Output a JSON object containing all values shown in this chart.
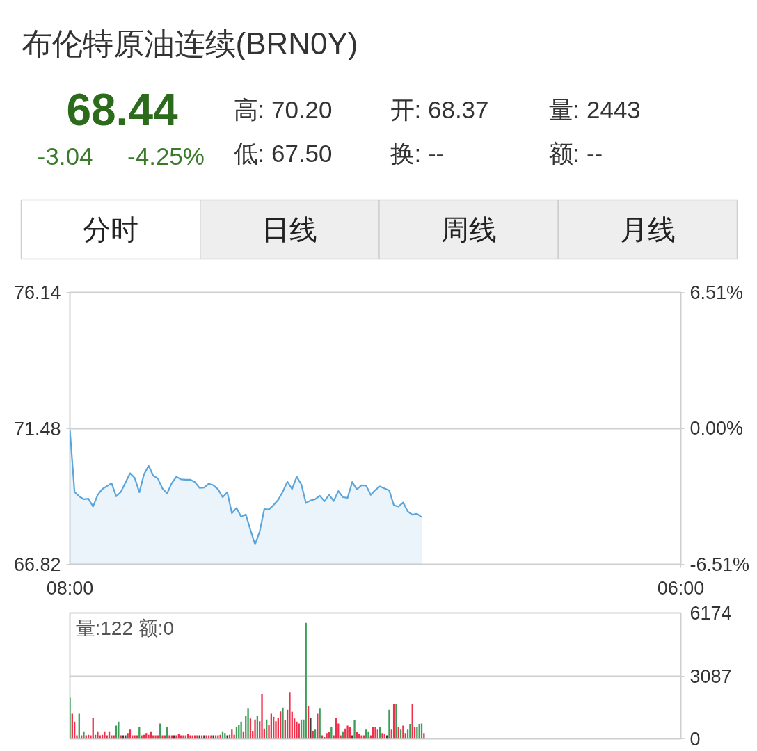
{
  "chart_data": [
    {
      "type": "other",
      "title": "布伦特原油连续(BRN0Y)",
      "annotations": [
        "68.44",
        "-3.04",
        "-4.25%",
        "高: 70.20",
        "开: 68.37",
        "量: 2443",
        "低: 67.50",
        "换: --",
        "额: --",
        "分时",
        "日线",
        "周线",
        "月线"
      ]
    },
    {
      "type": "area",
      "categories": [
        "08:00",
        null,
        null,
        null,
        null,
        null,
        null,
        null,
        null,
        null,
        null,
        null,
        null,
        null,
        null,
        null,
        null,
        null,
        null,
        null,
        null,
        null,
        null,
        null,
        null,
        null,
        null,
        null,
        null,
        null,
        null,
        null,
        null,
        null,
        null,
        null,
        null,
        null,
        null,
        null,
        null,
        null,
        null,
        null,
        null,
        null,
        null,
        null,
        null,
        null,
        null,
        null,
        null,
        null,
        null,
        null,
        null,
        null,
        null,
        null,
        null,
        null,
        null,
        null,
        null,
        null,
        null,
        null,
        null,
        null,
        null,
        null,
        null,
        null,
        null,
        null,
        null,
        null,
        null,
        null,
        null,
        null,
        null,
        null,
        null,
        null,
        null,
        null,
        null,
        null,
        null,
        null,
        null,
        null,
        null,
        null,
        null,
        null,
        null,
        null,
        null,
        null,
        null,
        null,
        null,
        null,
        null,
        null,
        null,
        null,
        null,
        null,
        null,
        null,
        null,
        null,
        null,
        null,
        null,
        null,
        null,
        null,
        null,
        null,
        null,
        null,
        null,
        null,
        null,
        null,
        null,
        null,
        "06:00"
      ],
      "series": [
        {
          "color": "#5aa5dc",
          "values": [
            71.41,
            69.3,
            69.15,
            69.05,
            69.07,
            68.8,
            69.2,
            69.4,
            69.5,
            69.6,
            69.15,
            69.3,
            69.62,
            69.94,
            69.78,
            69.29,
            69.9,
            70.2,
            69.86,
            69.76,
            69.42,
            69.25,
            69.6,
            69.82,
            69.73,
            69.72,
            69.72,
            69.64,
            69.44,
            69.45,
            69.58,
            69.53,
            69.39,
            69.12,
            69.29,
            68.57,
            68.75,
            68.45,
            68.53,
            68.0,
            67.5,
            67.94,
            68.71,
            68.7,
            68.85,
            69.03,
            69.31,
            69.65,
            69.4,
            69.82,
            69.56,
            68.92,
            69.01,
            69.05,
            69.17,
            68.98,
            69.2,
            68.99,
            69.33,
            69.12,
            69.1,
            69.64,
            69.39,
            69.53,
            69.52,
            69.2,
            69.37,
            69.49,
            69.42,
            69.35,
            68.84,
            68.8,
            68.94,
            68.63,
            68.52,
            68.55,
            68.44,
            null,
            null,
            null,
            null,
            null,
            null,
            null,
            null,
            null,
            null,
            null,
            null,
            null,
            null,
            null,
            null,
            null,
            null,
            null,
            null,
            null,
            null,
            null,
            null,
            null,
            null,
            null,
            null,
            null,
            null,
            null,
            null,
            null,
            null,
            null,
            null,
            null,
            null,
            null,
            null,
            null,
            null,
            null,
            null,
            null,
            null,
            null,
            null,
            null,
            null,
            null,
            null,
            null,
            null,
            null,
            null
          ]
        }
      ],
      "ylim": [
        66.82,
        76.14
      ],
      "yticks": [
        66.82,
        71.48,
        76.14
      ],
      "y2lim": [
        -6.51,
        6.51
      ],
      "y2ticks": [
        {
          "value": -6.51,
          "label": "-6.51%"
        },
        {
          "value": 0,
          "label": "0.00%"
        },
        {
          "value": 6.51,
          "label": "6.51%"
        }
      ],
      "grid": "y"
    },
    {
      "type": "bar",
      "categories": [
        null,
        null,
        null,
        null,
        null,
        null,
        null,
        null,
        null,
        null,
        null,
        null,
        null,
        null,
        null,
        null,
        null,
        null,
        null,
        null,
        null,
        null,
        null,
        null,
        null,
        null,
        null,
        null,
        null,
        null,
        null,
        null,
        null,
        null,
        null,
        null,
        null,
        null,
        null,
        null,
        null,
        null,
        null,
        null,
        null,
        null,
        null,
        null,
        null,
        null,
        null,
        null,
        null,
        null,
        null,
        null,
        null,
        null,
        null,
        null,
        null,
        null,
        null,
        null,
        null,
        null,
        null,
        null,
        null,
        null,
        null,
        null,
        null,
        null,
        null,
        null,
        null,
        null,
        null,
        null,
        null,
        null,
        null,
        null,
        null,
        null,
        null,
        null,
        null,
        null,
        null,
        null,
        null,
        null,
        null,
        null,
        null,
        null,
        null,
        null,
        null,
        null,
        null,
        null,
        null,
        null,
        null,
        null,
        null,
        null,
        null,
        null,
        null,
        null,
        null,
        null,
        null,
        null,
        null,
        null,
        null,
        null,
        null,
        null,
        null,
        null,
        null,
        null,
        null,
        null,
        null,
        null,
        null,
        null,
        null,
        null,
        null,
        null,
        null,
        null,
        null,
        null,
        null,
        null,
        null,
        null,
        null,
        null,
        null,
        null,
        null,
        null,
        null,
        null,
        null,
        null,
        null,
        null,
        null,
        null,
        null,
        null,
        null,
        null,
        null,
        null,
        null,
        null,
        null,
        null,
        null,
        null,
        null,
        null,
        null,
        null,
        null,
        null,
        null,
        null,
        null,
        null,
        null,
        null,
        null,
        null,
        null,
        null,
        null,
        null,
        null,
        null,
        null,
        null,
        null,
        null,
        null,
        null,
        null,
        null,
        null,
        null,
        null,
        null,
        null,
        null,
        null,
        null,
        null,
        null,
        null,
        null,
        null,
        null,
        null,
        null,
        null,
        null,
        null,
        null,
        null,
        null,
        null,
        null,
        null,
        null,
        null,
        null,
        null,
        null,
        null,
        null,
        null,
        null,
        null,
        null,
        null,
        null,
        null,
        null,
        null,
        null,
        null,
        null,
        null,
        null,
        null,
        null,
        null,
        null,
        null,
        null,
        null,
        null,
        null,
        null,
        null,
        null,
        null,
        null,
        null,
        null,
        null,
        null,
        null
      ],
      "values": [
        2010,
        1230,
        840,
        170,
        1230,
        170,
        370,
        170,
        200,
        170,
        1040,
        200,
        370,
        170,
        200,
        370,
        170,
        370,
        170,
        170,
        650,
        840,
        170,
        170,
        170,
        280,
        450,
        170,
        170,
        170,
        560,
        170,
        200,
        280,
        200,
        370,
        170,
        170,
        170,
        750,
        170,
        170,
        560,
        170,
        170,
        170,
        170,
        260,
        170,
        170,
        170,
        260,
        170,
        170,
        170,
        170,
        170,
        170,
        170,
        170,
        170,
        170,
        170,
        170,
        170,
        200,
        370,
        280,
        170,
        200,
        450,
        200,
        560,
        670,
        840,
        370,
        1120,
        1510,
        1000,
        390,
        950,
        1120,
        860,
        2200,
        500,
        950,
        670,
        1230,
        1080,
        860,
        1040,
        1340,
        1530,
        930,
        1420,
        2290,
        1320,
        1000,
        840,
        750,
        950,
        950,
        5690,
        1620,
        1040,
        390,
        450,
        1230,
        1510,
        170,
        80,
        280,
        330,
        560,
        170,
        1040,
        750,
        170,
        370,
        500,
        650,
        560,
        170,
        930,
        330,
        220,
        170,
        170,
        450,
        370,
        170,
        560,
        560,
        450,
        560,
        280,
        220,
        170,
        1420,
        450,
        1700,
        1700,
        560,
        450,
        650,
        280,
        450,
        730,
        1700,
        560,
        560,
        730,
        750,
        280,
        null,
        null,
        null,
        null,
        null,
        null,
        null,
        null,
        null,
        null,
        null,
        null,
        null,
        null,
        null,
        null,
        null,
        null,
        null,
        null,
        null,
        null,
        null,
        null,
        null,
        null,
        null,
        null,
        null,
        null,
        null,
        null,
        null,
        null,
        null,
        null,
        null,
        null,
        null,
        null,
        null,
        null,
        null,
        null,
        null,
        null,
        null,
        null,
        null,
        null,
        null,
        null,
        null,
        null,
        null,
        null,
        null,
        null,
        null,
        null,
        null,
        null,
        null,
        null,
        null,
        null,
        null,
        null,
        null,
        null,
        null,
        null,
        null,
        null,
        null,
        null,
        null,
        null,
        null,
        null,
        null,
        null,
        null,
        null,
        null,
        null,
        null,
        null,
        null,
        null,
        null,
        null,
        null,
        null,
        null,
        null,
        null,
        null,
        null,
        null,
        null,
        null,
        null,
        null,
        null,
        null,
        null,
        null,
        null,
        null,
        null
      ],
      "colors": [
        "#3c9e5a",
        "#f0304a",
        "#f0304a",
        "#f0304a",
        "#3c9e5a",
        "#f0304a",
        "#3c9e5a",
        "#f0304a",
        "#f0304a",
        "#f0304a",
        "#f0304a",
        "#f0304a",
        "#f0304a",
        "#f0304a",
        "#f0304a",
        "#f0304a",
        "#f0304a",
        "#f0304a",
        "#f0304a",
        "#f0304a",
        "#3c9e5a",
        "#3c9e5a",
        "#f0304a",
        "#3a3a3a",
        "#3a3a3a",
        "#f0304a",
        "#f0304a",
        "#f0304a",
        "#f0304a",
        "#f0304a",
        "#3c9e5a",
        "#f0304a",
        "#f0304a",
        "#f0304a",
        "#f0304a",
        "#f0304a",
        "#f0304a",
        "#f0304a",
        "#f0304a",
        "#3c9e5a",
        "#f0304a",
        "#f0304a",
        "#3c9e5a",
        "#f0304a",
        "#f0304a",
        "#3a3a3a",
        "#f0304a",
        "#f0304a",
        "#f0304a",
        "#f0304a",
        "#f0304a",
        "#f0304a",
        "#f0304a",
        "#f0304a",
        "#f0304a",
        "#f0304a",
        "#3a3a3a",
        "#f0304a",
        "#3a3a3a",
        "#f0304a",
        "#f0304a",
        "#f0304a",
        "#3a3a3a",
        "#f0304a",
        "#f0304a",
        "#f0304a",
        "#3c9e5a",
        "#3c9e5a",
        "#3a3a3a",
        "#f0304a",
        "#f0304a",
        "#f0304a",
        "#3c9e5a",
        "#3c9e5a",
        "#3c9e5a",
        "#f0304a",
        "#3c9e5a",
        "#3c9e5a",
        "#f0304a",
        "#f0304a",
        "#f0304a",
        "#3c9e5a",
        "#f0304a",
        "#f0304a",
        "#f0304a",
        "#3c9e5a",
        "#f0304a",
        "#f0304a",
        "#f0304a",
        "#f0304a",
        "#f0304a",
        "#f0304a",
        "#3c9e5a",
        "#f0304a",
        "#f0304a",
        "#f0304a",
        "#f0304a",
        "#f0304a",
        "#f0304a",
        "#f0304a",
        "#3c9e5a",
        "#3c9e5a",
        "#3c9e5a",
        "#f0304a",
        "#3a3a3a",
        "#f0304a",
        "#3c9e5a",
        "#f0304a",
        "#3c9e5a",
        "#f0304a",
        "#3a3a3a",
        "#f0304a",
        "#f0304a",
        "#3c9e5a",
        "#f0304a",
        "#f0304a",
        "#f0304a",
        "#f0304a",
        "#3c9e5a",
        "#f0304a",
        "#f0304a",
        "#f0304a",
        "#3a3a3a",
        "#3c9e5a",
        "#f0304a",
        "#f0304a",
        "#f0304a",
        "#f0304a",
        "#3c9e5a",
        "#3c9e5a",
        "#f0304a",
        "#f0304a",
        "#f0304a",
        "#f0304a",
        "#3c9e5a",
        "#f0304a",
        "#f0304a",
        "#3a3a3a",
        "#3c9e5a",
        "#f0304a",
        "#f0304a",
        "#3c9e5a",
        "#f0304a",
        "#3c9e5a",
        "#f0304a",
        "#f0304a",
        "#3c9e5a",
        "#3c9e5a",
        "#f0304a",
        "#f0304a",
        "#3c9e5a",
        "#3c9e5a",
        "#3c9e5a",
        "#f0304a",
        null,
        null,
        null,
        null,
        null,
        null,
        null,
        null,
        null,
        null,
        null,
        null,
        null,
        null,
        null,
        null,
        null,
        null,
        null,
        null,
        null,
        null,
        null,
        null,
        null,
        null,
        null,
        null,
        null,
        null,
        null,
        null,
        null,
        null,
        null,
        null,
        null,
        null,
        null,
        null,
        null,
        null,
        null,
        null,
        null,
        null,
        null,
        null,
        null,
        null,
        null,
        null,
        null,
        null,
        null,
        null,
        null,
        null,
        null,
        null,
        null,
        null,
        null,
        null,
        null,
        null,
        null,
        null,
        null,
        null,
        null,
        null,
        null,
        null,
        null,
        null,
        null,
        null,
        null,
        null,
        null,
        null,
        null,
        null,
        null,
        null,
        null,
        null,
        null,
        null,
        null,
        null,
        null,
        null,
        null,
        null,
        null,
        null,
        null,
        null,
        null,
        null,
        null,
        null,
        null,
        null,
        null,
        null,
        null,
        null,
        null
      ],
      "tick_labels": "y",
      "ylim": [
        0,
        6174
      ],
      "yticks": [
        0,
        3087,
        6174
      ],
      "grid": "y",
      "annotations": [
        "量:122 额:0"
      ]
    }
  ]
}
